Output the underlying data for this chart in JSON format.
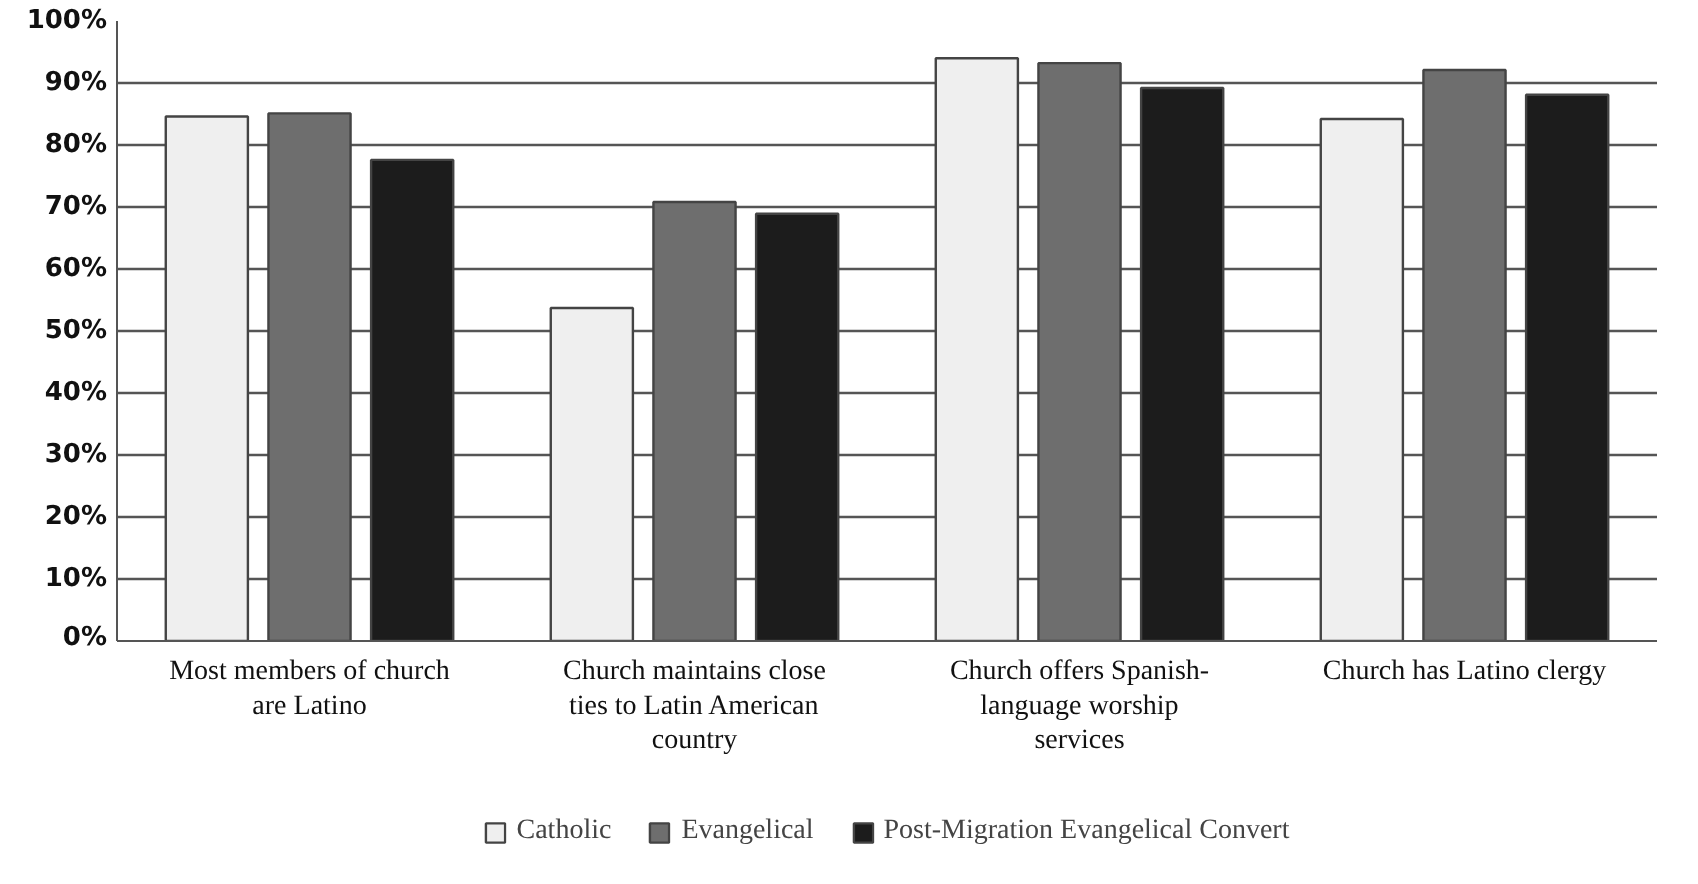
{
  "chart_data": {
    "type": "bar",
    "categories": [
      "Most members of church are Latino",
      "Church maintains close ties to Latin American country",
      "Church offers Spanish-language worship services",
      "Church has Latino clergy"
    ],
    "series": [
      {
        "name": "Catholic",
        "color": "#efefef",
        "values": [
          84.6,
          53.7,
          94.0,
          84.2
        ]
      },
      {
        "name": "Evangelical",
        "color": "#6e6e6e",
        "values": [
          85.1,
          70.8,
          93.2,
          92.1
        ]
      },
      {
        "name": "Post-Migration Evangelical Convert",
        "color": "#1c1c1c",
        "values": [
          77.6,
          68.9,
          89.2,
          88.1
        ]
      }
    ],
    "ylim": [
      0,
      100
    ],
    "yticks": [
      {
        "value": 0,
        "label": "0%"
      },
      {
        "value": 10,
        "label": "10%"
      },
      {
        "value": 20,
        "label": "20%"
      },
      {
        "value": 30,
        "label": "30%"
      },
      {
        "value": 40,
        "label": "40%"
      },
      {
        "value": 50,
        "label": "50%"
      },
      {
        "value": 60,
        "label": "60%"
      },
      {
        "value": 70,
        "label": "70%"
      },
      {
        "value": 80,
        "label": "80%"
      },
      {
        "value": 90,
        "label": "90%"
      },
      {
        "value": 100,
        "label": "100%"
      }
    ],
    "grid": "y",
    "legend": "bottom"
  }
}
